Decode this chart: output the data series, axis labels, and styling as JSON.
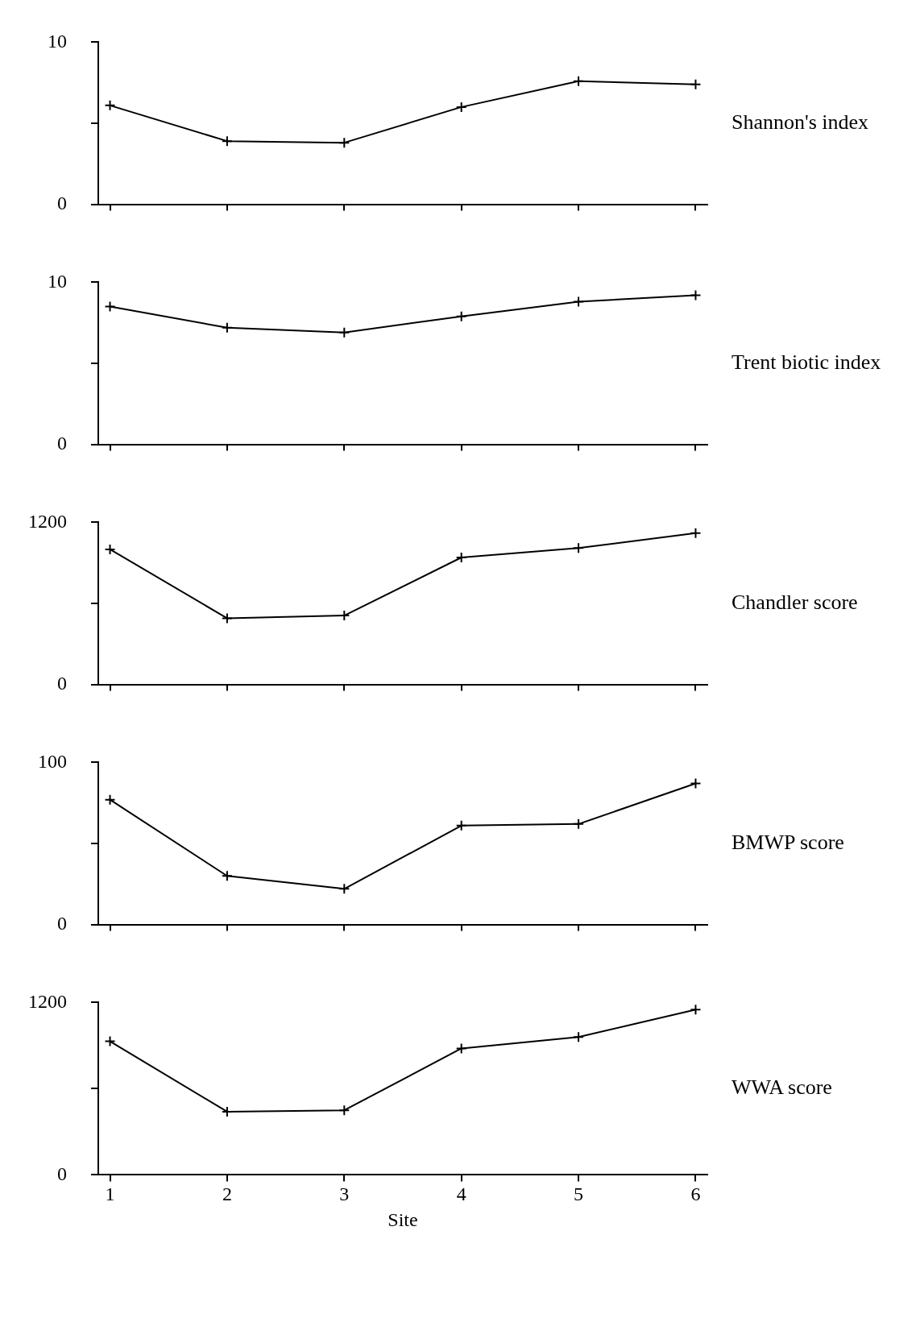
{
  "chart_data": [
    {
      "type": "line",
      "x": [
        1,
        2,
        3,
        4,
        5,
        6
      ],
      "xlim": [
        0.9,
        6.1
      ],
      "xticks": [
        1,
        2,
        3,
        4,
        5,
        6
      ],
      "ylim": [
        0,
        10
      ],
      "yticks": [
        0,
        {
          "value": 5,
          "label": null
        },
        10
      ],
      "tick_labels": "y",
      "marker": "cross",
      "grid": false,
      "legend": false,
      "series": [
        {
          "name": "Shannon's index",
          "color": "#000000",
          "values": [
            6.1,
            3.9,
            3.8,
            6.0,
            7.6,
            7.4
          ]
        }
      ]
    },
    {
      "type": "line",
      "x": [
        1,
        2,
        3,
        4,
        5,
        6
      ],
      "xlim": [
        0.9,
        6.1
      ],
      "xticks": [
        1,
        2,
        3,
        4,
        5,
        6
      ],
      "ylim": [
        0,
        10
      ],
      "yticks": [
        0,
        {
          "value": 5,
          "label": null
        },
        10
      ],
      "tick_labels": "y",
      "marker": "cross",
      "grid": false,
      "legend": false,
      "series": [
        {
          "name": "Trent biotic index",
          "color": "#000000",
          "values": [
            8.5,
            7.2,
            6.9,
            7.9,
            8.8,
            9.2
          ]
        }
      ]
    },
    {
      "type": "line",
      "x": [
        1,
        2,
        3,
        4,
        5,
        6
      ],
      "xlim": [
        0.9,
        6.1
      ],
      "xticks": [
        1,
        2,
        3,
        4,
        5,
        6
      ],
      "ylim": [
        0,
        1200
      ],
      "yticks": [
        0,
        {
          "value": 600,
          "label": null
        },
        1200
      ],
      "tick_labels": "y",
      "marker": "cross",
      "grid": false,
      "legend": false,
      "series": [
        {
          "name": "Chandler score",
          "color": "#000000",
          "values": [
            1000,
            490,
            510,
            940,
            1010,
            1120
          ]
        }
      ]
    },
    {
      "type": "line",
      "x": [
        1,
        2,
        3,
        4,
        5,
        6
      ],
      "xlim": [
        0.9,
        6.1
      ],
      "xticks": [
        1,
        2,
        3,
        4,
        5,
        6
      ],
      "ylim": [
        0,
        100
      ],
      "yticks": [
        0,
        {
          "value": 50,
          "label": null
        },
        100
      ],
      "tick_labels": "y",
      "marker": "cross",
      "grid": false,
      "legend": false,
      "series": [
        {
          "name": "BMWP score",
          "color": "#000000",
          "values": [
            77,
            30,
            22,
            61,
            62,
            87
          ]
        }
      ]
    },
    {
      "type": "line",
      "x": [
        1,
        2,
        3,
        4,
        5,
        6
      ],
      "xlim": [
        0.9,
        6.1
      ],
      "xticks": [
        1,
        2,
        3,
        4,
        5,
        6
      ],
      "ylim": [
        0,
        1200
      ],
      "yticks": [
        0,
        {
          "value": 600,
          "label": null
        },
        1200
      ],
      "xlabel": "Site",
      "marker": "cross",
      "grid": false,
      "legend": false,
      "series": [
        {
          "name": "WWA score",
          "color": "#000000",
          "values": [
            930,
            440,
            450,
            880,
            960,
            1150
          ]
        }
      ]
    }
  ]
}
